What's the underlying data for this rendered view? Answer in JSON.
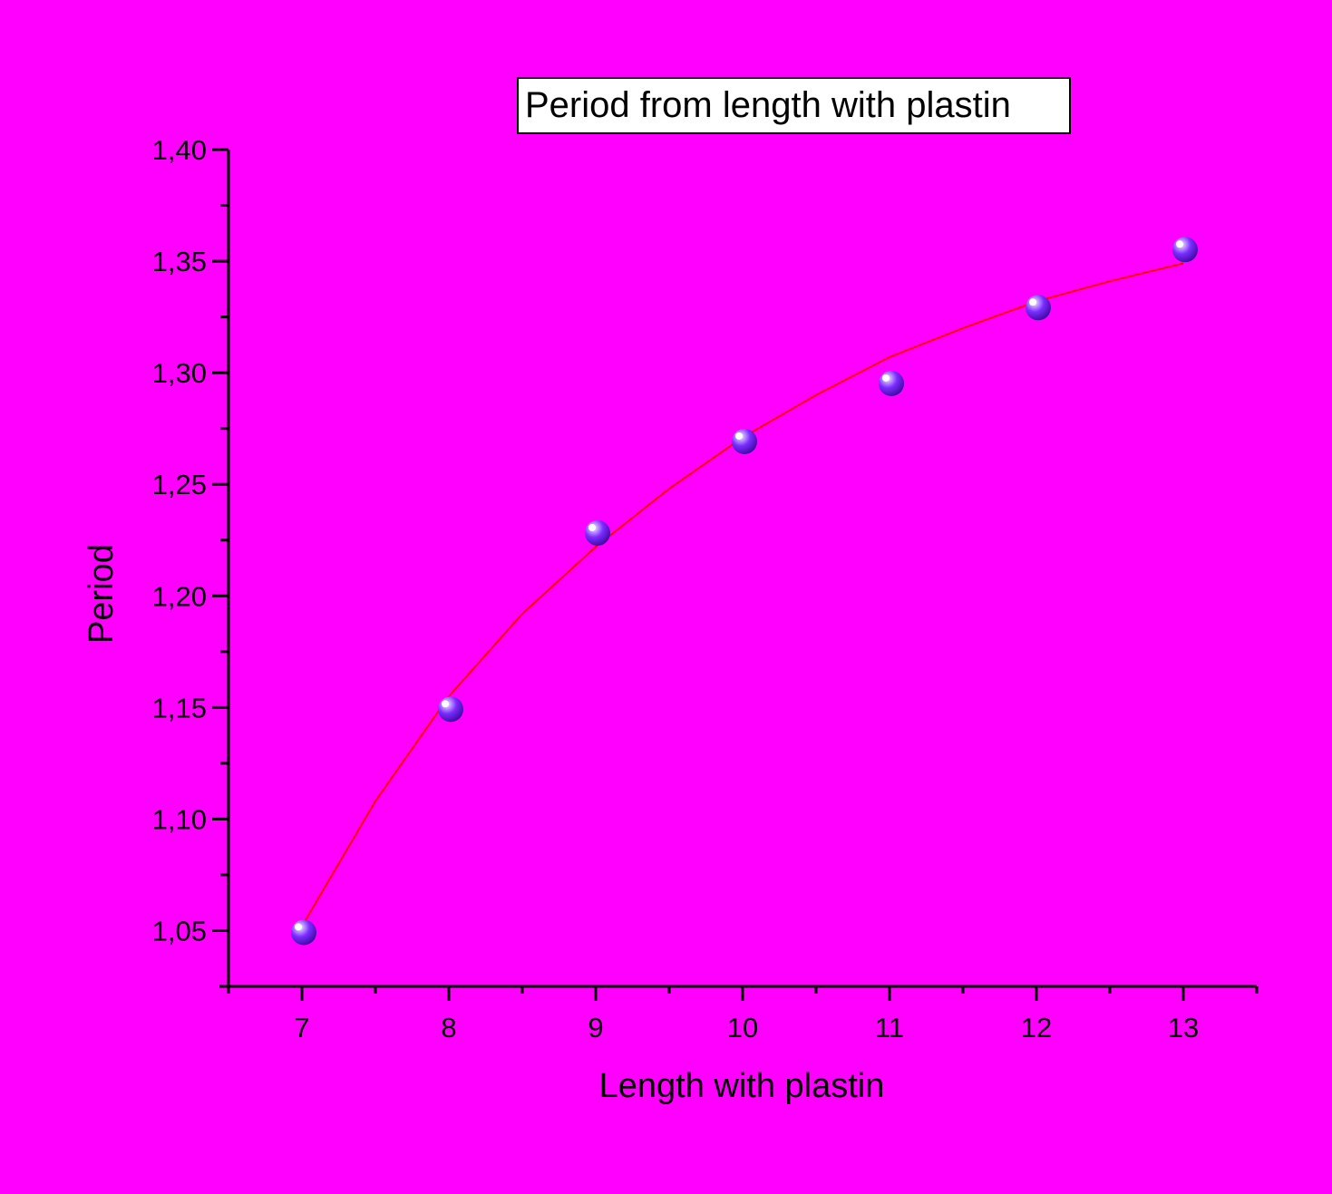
{
  "chart_data": {
    "type": "scatter",
    "title": "",
    "legend": {
      "text": "Period from length with plastin",
      "position": "top"
    },
    "xlabel": "Length with plastin",
    "ylabel": "Period",
    "xlim": [
      6.5,
      13.5
    ],
    "ylim": [
      1.025,
      1.4
    ],
    "x_ticks": [
      7,
      8,
      9,
      10,
      11,
      12,
      13
    ],
    "x_tick_labels": [
      "7",
      "8",
      "9",
      "10",
      "11",
      "12",
      "13"
    ],
    "y_ticks": [
      1.05,
      1.1,
      1.15,
      1.2,
      1.25,
      1.3,
      1.35,
      1.4
    ],
    "y_tick_labels": [
      "1,05",
      "1,10",
      "1,15",
      "1,20",
      "1,25",
      "1,30",
      "1,35",
      "1,40"
    ],
    "grid": false,
    "series": [
      {
        "type": "scatter",
        "x": [
          7,
          8,
          9,
          10,
          11,
          12,
          13
        ],
        "y": [
          1.05,
          1.15,
          1.229,
          1.27,
          1.296,
          1.33,
          1.356
        ]
      },
      {
        "type": "line",
        "x": [
          7,
          7.5,
          8,
          8.5,
          9,
          9.5,
          10,
          10.5,
          11,
          11.5,
          12,
          12.5,
          13
        ],
        "y": [
          1.052,
          1.108,
          1.155,
          1.192,
          1.222,
          1.248,
          1.271,
          1.29,
          1.307,
          1.32,
          1.332,
          1.341,
          1.349
        ]
      }
    ],
    "colors": {
      "background": "#ff00ff",
      "marker": "#6a1ee8",
      "fit_line": "#ff0000",
      "axis": "#000000"
    }
  }
}
